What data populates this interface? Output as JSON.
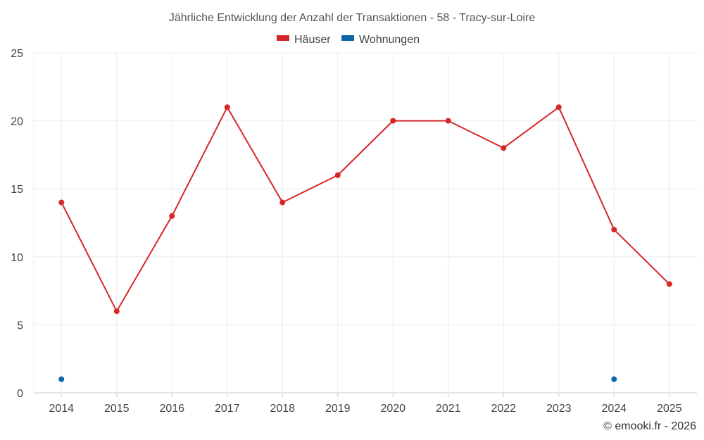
{
  "chart_data": {
    "type": "line",
    "title": "Jährliche Entwicklung der Anzahl der Transaktionen - 58 - Tracy-sur-Loire",
    "xlabel": "",
    "ylabel": "",
    "categories": [
      "2014",
      "2015",
      "2016",
      "2017",
      "2018",
      "2019",
      "2020",
      "2021",
      "2022",
      "2023",
      "2024",
      "2025"
    ],
    "ylim": [
      0,
      25
    ],
    "yticks": [
      "0",
      "5",
      "10",
      "15",
      "20",
      "25"
    ],
    "grid": true,
    "legend_position": "top-center",
    "series": [
      {
        "name": "Häuser",
        "color": "#d62728",
        "line": true,
        "values": [
          14,
          6,
          13,
          21,
          14,
          16,
          20,
          20,
          18,
          21,
          12,
          8
        ]
      },
      {
        "name": "Wohnungen",
        "color": "#0b66a8",
        "line": false,
        "values": [
          1,
          null,
          null,
          null,
          null,
          null,
          null,
          null,
          null,
          null,
          1,
          null
        ]
      }
    ]
  },
  "credit": "© emooki.fr - 2026"
}
